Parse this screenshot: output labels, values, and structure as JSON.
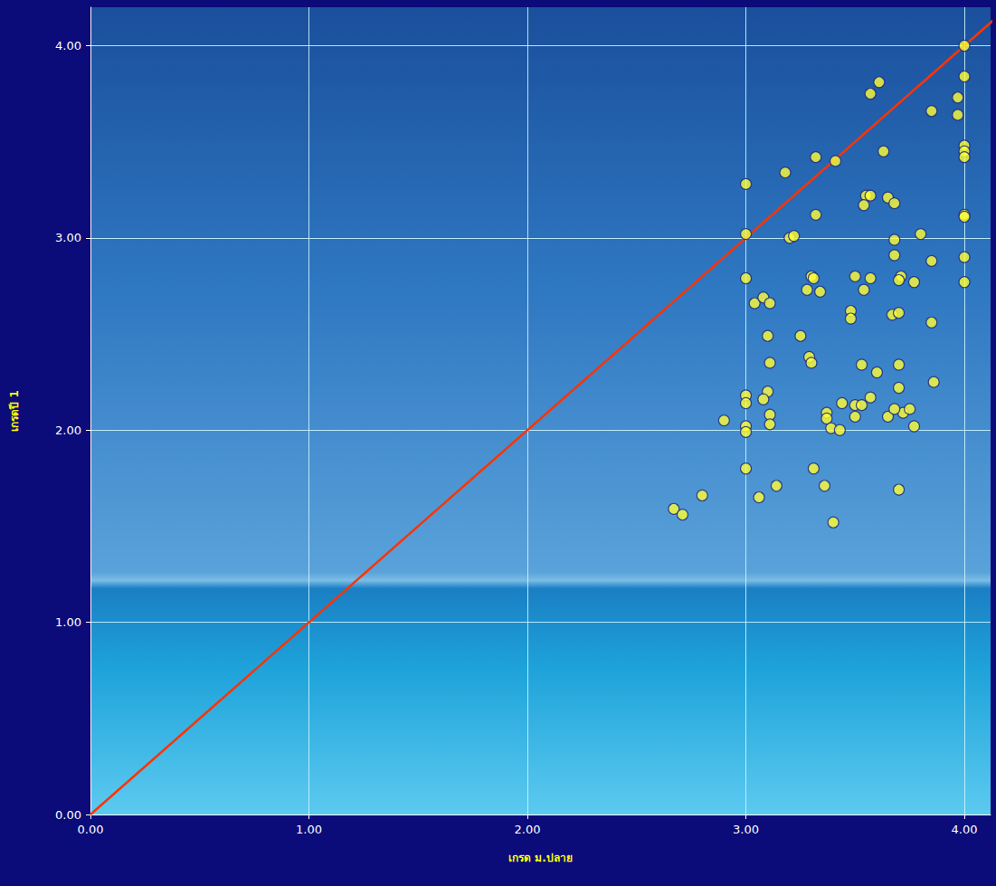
{
  "chart_data": {
    "type": "scatter",
    "x_label": "เกรด ม.ปลาย",
    "y_label": "เกรดปี 1",
    "xlim": [
      0,
      4.12
    ],
    "ylim": [
      0,
      4.2
    ],
    "xticks": [
      {
        "value": 0,
        "label": "0.00"
      },
      {
        "value": 1,
        "label": "1.00"
      },
      {
        "value": 2,
        "label": "2.00"
      },
      {
        "value": 3,
        "label": "3.00"
      },
      {
        "value": 4,
        "label": "4.00"
      }
    ],
    "yticks": [
      {
        "value": 0,
        "label": "0.00"
      },
      {
        "value": 1,
        "label": "1.00"
      },
      {
        "value": 2,
        "label": "2.00"
      },
      {
        "value": 3,
        "label": "3.00"
      },
      {
        "value": 4,
        "label": "4.00"
      }
    ],
    "grid": true,
    "series": [
      {
        "type": "scatter",
        "color": "#ffff33",
        "marker": "circle",
        "x": [
          4.0,
          4.0,
          3.97,
          3.97,
          3.85,
          4.0,
          4.0,
          4.0,
          4.0,
          4.0,
          4.0,
          4.0,
          3.61,
          3.57,
          3.63,
          3.8,
          3.85,
          3.85,
          3.86,
          3.0,
          3.0,
          3.0,
          3.0,
          3.0,
          3.0,
          3.0,
          3.0,
          3.18,
          3.32,
          3.41,
          3.2,
          3.22,
          3.32,
          3.55,
          3.57,
          3.54,
          3.65,
          3.68,
          3.68,
          3.68,
          3.71,
          3.7,
          3.77,
          3.3,
          3.31,
          3.28,
          3.34,
          3.5,
          3.57,
          3.54,
          3.04,
          3.08,
          3.11,
          3.48,
          3.48,
          3.67,
          3.7,
          3.1,
          3.25,
          3.11,
          3.29,
          3.3,
          3.53,
          3.6,
          3.7,
          3.7,
          3.1,
          3.08,
          3.57,
          3.44,
          3.37,
          3.37,
          3.5,
          3.53,
          3.5,
          3.65,
          3.72,
          3.75,
          3.77,
          3.68,
          3.39,
          3.43,
          3.11,
          3.11,
          2.9,
          2.8,
          2.67,
          2.71,
          3.06,
          3.14,
          3.31,
          3.36,
          3.4,
          3.7
        ],
        "values": [
          4.0,
          3.84,
          3.73,
          3.64,
          3.66,
          3.48,
          3.45,
          3.42,
          3.12,
          3.11,
          2.9,
          2.77,
          3.81,
          3.75,
          3.45,
          3.02,
          2.88,
          2.56,
          2.25,
          3.28,
          3.02,
          2.79,
          2.18,
          2.14,
          2.02,
          1.99,
          1.8,
          3.34,
          3.42,
          3.4,
          3.0,
          3.01,
          3.12,
          3.22,
          3.22,
          3.17,
          3.21,
          3.18,
          2.99,
          2.91,
          2.8,
          2.78,
          2.77,
          2.8,
          2.79,
          2.73,
          2.72,
          2.8,
          2.79,
          2.73,
          2.66,
          2.69,
          2.66,
          2.62,
          2.58,
          2.6,
          2.61,
          2.49,
          2.49,
          2.35,
          2.38,
          2.35,
          2.34,
          2.3,
          2.34,
          2.22,
          2.2,
          2.16,
          2.17,
          2.14,
          2.09,
          2.06,
          2.13,
          2.13,
          2.07,
          2.07,
          2.09,
          2.11,
          2.02,
          2.11,
          2.01,
          2.0,
          2.08,
          2.03,
          2.05,
          1.66,
          1.59,
          1.56,
          1.65,
          1.71,
          1.8,
          1.71,
          1.52,
          1.69
        ]
      },
      {
        "type": "line",
        "color": "#ff3300",
        "line_style": "solid",
        "x": [
          0,
          4.2
        ],
        "values": [
          0,
          4.2
        ]
      }
    ]
  }
}
